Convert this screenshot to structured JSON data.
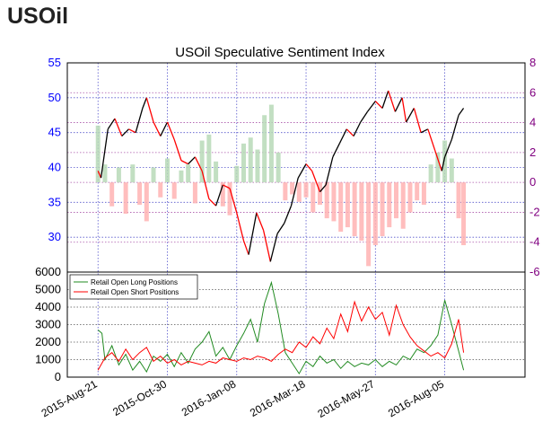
{
  "header": {
    "title": "USOil"
  },
  "chart_data": [
    {
      "type": "line",
      "title": "USOil Speculative Sentiment Index",
      "x_ticks": [
        "2015-Aug-21",
        "2015-Oct-30",
        "2016-Jan-08",
        "2016-Mar-18",
        "2016-May-27",
        "2016-Aug-05"
      ],
      "xlim": [
        "2015-Jul-21",
        "2016-Oct-25"
      ],
      "grid": true,
      "left_axis": {
        "ylim": [
          25,
          55
        ],
        "ticks": [
          30,
          35,
          40,
          45,
          50,
          55
        ],
        "color": "#0000ff"
      },
      "right_axis": {
        "ylim": [
          -6,
          8
        ],
        "ticks": [
          -6,
          -4,
          -2,
          0,
          2,
          4,
          6,
          8
        ],
        "color": "#800080"
      },
      "price_series": {
        "color_up": "#000000",
        "color_down": "#ff0000",
        "points": [
          [
            "2015-Aug-21",
            39.5
          ],
          [
            "2015-Aug-24",
            38.5
          ],
          [
            "2015-Aug-31",
            45.5
          ],
          [
            "2015-Sep-07",
            47.0
          ],
          [
            "2015-Sep-14",
            44.5
          ],
          [
            "2015-Sep-21",
            45.5
          ],
          [
            "2015-Sep-28",
            45.0
          ],
          [
            "2015-Oct-05",
            48.5
          ],
          [
            "2015-Oct-09",
            50.0
          ],
          [
            "2015-Oct-16",
            46.5
          ],
          [
            "2015-Oct-23",
            44.5
          ],
          [
            "2015-Oct-30",
            46.5
          ],
          [
            "2015-Nov-06",
            44.0
          ],
          [
            "2015-Nov-13",
            41.0
          ],
          [
            "2015-Nov-20",
            40.5
          ],
          [
            "2015-Nov-27",
            41.5
          ],
          [
            "2015-Dec-04",
            39.5
          ],
          [
            "2015-Dec-11",
            35.5
          ],
          [
            "2015-Dec-18",
            34.5
          ],
          [
            "2015-Dec-25",
            37.5
          ],
          [
            "2016-Jan-01",
            37.0
          ],
          [
            "2016-Jan-08",
            33.5
          ],
          [
            "2016-Jan-15",
            29.5
          ],
          [
            "2016-Jan-20",
            27.5
          ],
          [
            "2016-Jan-28",
            33.5
          ],
          [
            "2016-Feb-04",
            31.0
          ],
          [
            "2016-Feb-11",
            26.5
          ],
          [
            "2016-Feb-18",
            30.5
          ],
          [
            "2016-Feb-25",
            32.0
          ],
          [
            "2016-Mar-03",
            34.5
          ],
          [
            "2016-Mar-10",
            38.5
          ],
          [
            "2016-Mar-18",
            40.5
          ],
          [
            "2016-Mar-24",
            39.5
          ],
          [
            "2016-Apr-01",
            36.5
          ],
          [
            "2016-Apr-07",
            37.5
          ],
          [
            "2016-Apr-14",
            41.5
          ],
          [
            "2016-Apr-21",
            43.5
          ],
          [
            "2016-Apr-28",
            45.5
          ],
          [
            "2016-May-05",
            44.5
          ],
          [
            "2016-May-12",
            46.5
          ],
          [
            "2016-May-19",
            48.0
          ],
          [
            "2016-May-27",
            49.5
          ],
          [
            "2016-Jun-03",
            48.5
          ],
          [
            "2016-Jun-09",
            51.0
          ],
          [
            "2016-Jun-16",
            48.0
          ],
          [
            "2016-Jun-23",
            50.0
          ],
          [
            "2016-Jun-27",
            46.5
          ],
          [
            "2016-Jul-05",
            48.5
          ],
          [
            "2016-Jul-12",
            45.0
          ],
          [
            "2016-Jul-19",
            45.5
          ],
          [
            "2016-Jul-26",
            42.5
          ],
          [
            "2016-Aug-02",
            39.5
          ],
          [
            "2016-Aug-05",
            41.5
          ],
          [
            "2016-Aug-12",
            44.0
          ],
          [
            "2016-Aug-19",
            47.5
          ],
          [
            "2016-Aug-24",
            48.5
          ]
        ]
      },
      "ssi_bars": {
        "positive_color": "#b7d9b7",
        "negative_color": "#ffb3b3",
        "points": [
          [
            "2015-Aug-21",
            3.8
          ],
          [
            "2015-Aug-28",
            1.2
          ],
          [
            "2015-Sep-04",
            -1.6
          ],
          [
            "2015-Sep-11",
            1.0
          ],
          [
            "2015-Sep-18",
            -2.1
          ],
          [
            "2015-Sep-25",
            1.2
          ],
          [
            "2015-Oct-02",
            -1.5
          ],
          [
            "2015-Oct-09",
            -2.6
          ],
          [
            "2015-Oct-16",
            1.0
          ],
          [
            "2015-Oct-23",
            -1.0
          ],
          [
            "2015-Oct-30",
            1.6
          ],
          [
            "2015-Nov-06",
            -1.1
          ],
          [
            "2015-Nov-13",
            0.8
          ],
          [
            "2015-Nov-20",
            1.2
          ],
          [
            "2015-Nov-27",
            -1.4
          ],
          [
            "2015-Dec-04",
            2.8
          ],
          [
            "2015-Dec-11",
            3.2
          ],
          [
            "2015-Dec-18",
            1.4
          ],
          [
            "2015-Dec-25",
            -1.6
          ],
          [
            "2016-Jan-01",
            -2.2
          ],
          [
            "2016-Jan-08",
            1.1
          ],
          [
            "2016-Jan-15",
            2.6
          ],
          [
            "2016-Jan-22",
            3.0
          ],
          [
            "2016-Jan-29",
            2.2
          ],
          [
            "2016-Feb-05",
            4.5
          ],
          [
            "2016-Feb-12",
            5.2
          ],
          [
            "2016-Feb-19",
            2.0
          ],
          [
            "2016-Feb-26",
            -1.2
          ],
          [
            "2016-Mar-04",
            -0.8
          ],
          [
            "2016-Mar-11",
            -1.3
          ],
          [
            "2016-Mar-18",
            -1.0
          ],
          [
            "2016-Mar-25",
            -2.0
          ],
          [
            "2016-Apr-01",
            -1.5
          ],
          [
            "2016-Apr-08",
            -2.4
          ],
          [
            "2016-Apr-15",
            -2.6
          ],
          [
            "2016-Apr-22",
            -3.3
          ],
          [
            "2016-Apr-29",
            -3.0
          ],
          [
            "2016-May-06",
            -3.6
          ],
          [
            "2016-May-13",
            -3.9
          ],
          [
            "2016-May-20",
            -5.6
          ],
          [
            "2016-May-27",
            -4.2
          ],
          [
            "2016-Jun-03",
            -3.6
          ],
          [
            "2016-Jun-10",
            -3.0
          ],
          [
            "2016-Jun-17",
            -2.4
          ],
          [
            "2016-Jun-24",
            -3.1
          ],
          [
            "2016-Jul-01",
            -2.0
          ],
          [
            "2016-Jul-08",
            -1.2
          ],
          [
            "2016-Jul-15",
            -1.5
          ],
          [
            "2016-Jul-22",
            1.2
          ],
          [
            "2016-Jul-29",
            2.0
          ],
          [
            "2016-Aug-05",
            2.8
          ],
          [
            "2016-Aug-12",
            1.6
          ],
          [
            "2016-Aug-19",
            -2.4
          ],
          [
            "2016-Aug-24",
            -4.2
          ]
        ]
      }
    },
    {
      "type": "line",
      "ylim": [
        0,
        6000
      ],
      "y_ticks": [
        0,
        1000,
        2000,
        3000,
        4000,
        5000,
        6000
      ],
      "grid": true,
      "legend_position": "top-left",
      "series": [
        {
          "name": "Retail Open Long Positions",
          "color": "#228b22",
          "points": [
            [
              "2015-Aug-21",
              2700
            ],
            [
              "2015-Aug-25",
              2500
            ],
            [
              "2015-Aug-28",
              1000
            ],
            [
              "2015-Sep-04",
              1800
            ],
            [
              "2015-Sep-11",
              700
            ],
            [
              "2015-Sep-18",
              1300
            ],
            [
              "2015-Sep-25",
              400
            ],
            [
              "2015-Oct-02",
              900
            ],
            [
              "2015-Oct-09",
              300
            ],
            [
              "2015-Oct-16",
              1200
            ],
            [
              "2015-Oct-23",
              900
            ],
            [
              "2015-Oct-30",
              1300
            ],
            [
              "2015-Nov-06",
              600
            ],
            [
              "2015-Nov-13",
              1400
            ],
            [
              "2015-Nov-20",
              800
            ],
            [
              "2015-Nov-27",
              1600
            ],
            [
              "2015-Dec-04",
              2000
            ],
            [
              "2015-Dec-11",
              2600
            ],
            [
              "2015-Dec-18",
              1200
            ],
            [
              "2015-Dec-25",
              1700
            ],
            [
              "2016-Jan-01",
              1000
            ],
            [
              "2016-Jan-08",
              1800
            ],
            [
              "2016-Jan-15",
              2500
            ],
            [
              "2016-Jan-22",
              3300
            ],
            [
              "2016-Jan-29",
              2000
            ],
            [
              "2016-Feb-05",
              4200
            ],
            [
              "2016-Feb-12",
              5400
            ],
            [
              "2016-Feb-19",
              3600
            ],
            [
              "2016-Feb-26",
              1400
            ],
            [
              "2016-Mar-04",
              800
            ],
            [
              "2016-Mar-11",
              200
            ],
            [
              "2016-Mar-18",
              900
            ],
            [
              "2016-Mar-25",
              600
            ],
            [
              "2016-Apr-01",
              1200
            ],
            [
              "2016-Apr-08",
              800
            ],
            [
              "2016-Apr-15",
              1000
            ],
            [
              "2016-Apr-22",
              500
            ],
            [
              "2016-Apr-29",
              900
            ],
            [
              "2016-May-06",
              600
            ],
            [
              "2016-May-13",
              800
            ],
            [
              "2016-May-20",
              700
            ],
            [
              "2016-May-27",
              1000
            ],
            [
              "2016-Jun-03",
              600
            ],
            [
              "2016-Jun-10",
              900
            ],
            [
              "2016-Jun-17",
              700
            ],
            [
              "2016-Jun-24",
              1200
            ],
            [
              "2016-Jul-01",
              1000
            ],
            [
              "2016-Jul-08",
              1600
            ],
            [
              "2016-Jul-15",
              1400
            ],
            [
              "2016-Jul-22",
              1800
            ],
            [
              "2016-Jul-29",
              2400
            ],
            [
              "2016-Aug-05",
              4400
            ],
            [
              "2016-Aug-12",
              3000
            ],
            [
              "2016-Aug-19",
              1500
            ],
            [
              "2016-Aug-24",
              400
            ]
          ]
        },
        {
          "name": "Retail Open Short Positions",
          "color": "#ff0000",
          "points": [
            [
              "2015-Aug-21",
              400
            ],
            [
              "2015-Aug-28",
              1100
            ],
            [
              "2015-Sep-04",
              1400
            ],
            [
              "2015-Sep-11",
              900
            ],
            [
              "2015-Sep-18",
              1600
            ],
            [
              "2015-Sep-25",
              1000
            ],
            [
              "2015-Oct-02",
              1400
            ],
            [
              "2015-Oct-09",
              1700
            ],
            [
              "2015-Oct-16",
              900
            ],
            [
              "2015-Oct-23",
              1200
            ],
            [
              "2015-Oct-30",
              800
            ],
            [
              "2015-Nov-06",
              1000
            ],
            [
              "2015-Nov-13",
              700
            ],
            [
              "2015-Nov-20",
              900
            ],
            [
              "2015-Nov-27",
              800
            ],
            [
              "2015-Dec-04",
              700
            ],
            [
              "2015-Dec-11",
              900
            ],
            [
              "2015-Dec-18",
              800
            ],
            [
              "2015-Dec-25",
              1100
            ],
            [
              "2016-Jan-01",
              1000
            ],
            [
              "2016-Jan-08",
              900
            ],
            [
              "2016-Jan-15",
              1100
            ],
            [
              "2016-Jan-22",
              1000
            ],
            [
              "2016-Jan-29",
              1200
            ],
            [
              "2016-Feb-05",
              1100
            ],
            [
              "2016-Feb-12",
              900
            ],
            [
              "2016-Feb-19",
              1300
            ],
            [
              "2016-Feb-26",
              1600
            ],
            [
              "2016-Mar-04",
              1400
            ],
            [
              "2016-Mar-11",
              2000
            ],
            [
              "2016-Mar-18",
              1700
            ],
            [
              "2016-Mar-25",
              2300
            ],
            [
              "2016-Apr-01",
              1900
            ],
            [
              "2016-Apr-08",
              2800
            ],
            [
              "2016-Apr-15",
              2200
            ],
            [
              "2016-Apr-22",
              3600
            ],
            [
              "2016-Apr-29",
              2600
            ],
            [
              "2016-May-06",
              4300
            ],
            [
              "2016-May-13",
              3200
            ],
            [
              "2016-May-20",
              4000
            ],
            [
              "2016-May-27",
              3300
            ],
            [
              "2016-Jun-03",
              3700
            ],
            [
              "2016-Jun-10",
              2400
            ],
            [
              "2016-Jun-17",
              4100
            ],
            [
              "2016-Jun-24",
              3000
            ],
            [
              "2016-Jul-01",
              2300
            ],
            [
              "2016-Jul-08",
              1800
            ],
            [
              "2016-Jul-15",
              1500
            ],
            [
              "2016-Jul-22",
              1200
            ],
            [
              "2016-Jul-29",
              1400
            ],
            [
              "2016-Aug-05",
              1100
            ],
            [
              "2016-Aug-12",
              1900
            ],
            [
              "2016-Aug-19",
              3300
            ],
            [
              "2016-Aug-24",
              1400
            ]
          ]
        }
      ]
    }
  ]
}
